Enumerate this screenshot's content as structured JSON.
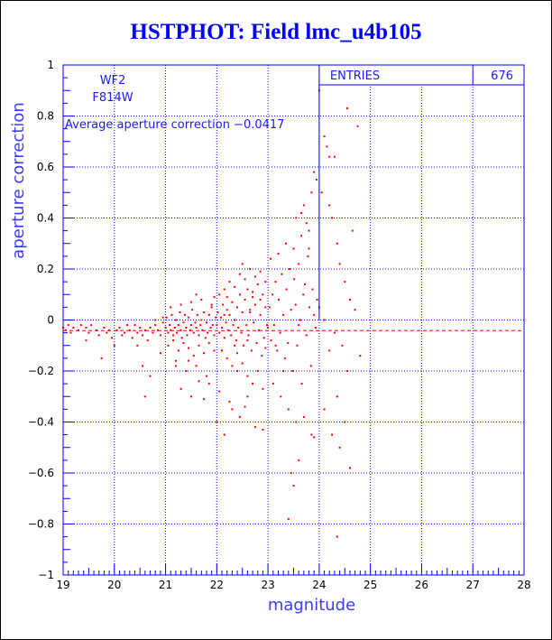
{
  "chart_data": {
    "type": "scatter",
    "title": "HSTPHOT: Field lmc_u4b105",
    "xlabel": "magnitude",
    "ylabel": "aperture correction",
    "xlim": [
      19,
      28
    ],
    "ylim": [
      -1,
      1
    ],
    "x_ticks": [
      19,
      20,
      21,
      22,
      23,
      24,
      25,
      26,
      27,
      28
    ],
    "y_ticks": [
      -1,
      -0.8,
      -0.6,
      -0.4,
      -0.2,
      0,
      0.2,
      0.4,
      0.6,
      0.8,
      1
    ],
    "y_tick_labels": [
      "−1",
      "−0.8",
      "−0.6",
      "−0.4",
      "−0.2",
      "0",
      "0.2",
      "0.4",
      "0.6",
      "0.8",
      "1"
    ],
    "grid": true,
    "colors": {
      "points": "#ff0000",
      "grid": "#0000ff",
      "frame": "#0000ff",
      "title": "#0000ff",
      "text": "#1a1aff"
    },
    "stats_box": {
      "label": "ENTRIES",
      "value": "676",
      "position": "top-right"
    },
    "annotations": {
      "camera": "WF2",
      "filter": "F814W",
      "average_text": "Average aperture correction −0.0417"
    },
    "average_line": {
      "y": -0.0417,
      "style": "dashed",
      "color": "#ff0000"
    },
    "entries": 676,
    "points": [
      [
        19.0,
        -0.03
      ],
      [
        19.05,
        -0.04
      ],
      [
        19.1,
        -0.02
      ],
      [
        19.15,
        -0.05
      ],
      [
        19.2,
        -0.03
      ],
      [
        19.3,
        -0.04
      ],
      [
        19.35,
        -0.02
      ],
      [
        19.45,
        -0.03
      ],
      [
        19.5,
        -0.05
      ],
      [
        19.55,
        -0.02
      ],
      [
        19.65,
        -0.04
      ],
      [
        19.7,
        -0.06
      ],
      [
        19.8,
        -0.03
      ],
      [
        19.85,
        -0.05
      ],
      [
        19.9,
        -0.04
      ],
      [
        19.95,
        -0.07
      ],
      [
        20.05,
        -0.04
      ],
      [
        20.1,
        -0.03
      ],
      [
        20.15,
        -0.06
      ],
      [
        20.2,
        -0.05
      ],
      [
        20.3,
        -0.04
      ],
      [
        20.35,
        -0.07
      ],
      [
        20.4,
        -0.02
      ],
      [
        20.45,
        -0.05
      ],
      [
        20.5,
        -0.03
      ],
      [
        20.55,
        -0.06
      ],
      [
        20.6,
        -0.04
      ],
      [
        20.65,
        -0.08
      ],
      [
        20.7,
        -0.03
      ],
      [
        20.75,
        -0.05
      ],
      [
        20.8,
        -0.02
      ],
      [
        20.85,
        -0.04
      ],
      [
        20.9,
        -0.06
      ],
      [
        20.95,
        -0.01
      ],
      [
        19.45,
        -0.08
      ],
      [
        19.75,
        -0.15
      ],
      [
        20.0,
        -0.1
      ],
      [
        20.55,
        -0.18
      ],
      [
        20.6,
        -0.3
      ],
      [
        20.7,
        -0.22
      ],
      [
        20.9,
        -0.13
      ],
      [
        20.45,
        -0.1
      ],
      [
        20.25,
        -0.02
      ],
      [
        20.8,
        0.0
      ],
      [
        20.95,
        0.01
      ],
      [
        21.0,
        -0.03
      ],
      [
        21.02,
        0.01
      ],
      [
        21.05,
        -0.05
      ],
      [
        21.08,
        -0.02
      ],
      [
        21.1,
        -0.04
      ],
      [
        21.12,
        0.02
      ],
      [
        21.15,
        -0.06
      ],
      [
        21.18,
        -0.03
      ],
      [
        21.2,
        0.0
      ],
      [
        21.22,
        -0.05
      ],
      [
        21.25,
        -0.02
      ],
      [
        21.28,
        0.03
      ],
      [
        21.3,
        -0.04
      ],
      [
        21.32,
        -0.07
      ],
      [
        21.35,
        -0.01
      ],
      [
        21.38,
        0.02
      ],
      [
        21.4,
        -0.03
      ],
      [
        21.42,
        -0.06
      ],
      [
        21.45,
        0.01
      ],
      [
        21.48,
        -0.04
      ],
      [
        21.5,
        -0.02
      ],
      [
        21.52,
        0.04
      ],
      [
        21.55,
        -0.05
      ],
      [
        21.58,
        -0.01
      ],
      [
        21.6,
        -0.03
      ],
      [
        21.62,
        0.02
      ],
      [
        21.65,
        -0.06
      ],
      [
        21.68,
        -0.02
      ],
      [
        21.7,
        0.0
      ],
      [
        21.72,
        -0.04
      ],
      [
        21.75,
        0.03
      ],
      [
        21.78,
        -0.07
      ],
      [
        21.8,
        -0.01
      ],
      [
        21.82,
        -0.05
      ],
      [
        21.85,
        0.02
      ],
      [
        21.88,
        -0.03
      ],
      [
        21.9,
        0.05
      ],
      [
        21.92,
        -0.02
      ],
      [
        21.95,
        -0.06
      ],
      [
        21.98,
        0.01
      ],
      [
        21.05,
        -0.1
      ],
      [
        21.15,
        -0.08
      ],
      [
        21.25,
        -0.12
      ],
      [
        21.35,
        -0.09
      ],
      [
        21.45,
        -0.11
      ],
      [
        21.55,
        -0.14
      ],
      [
        21.65,
        -0.1
      ],
      [
        21.75,
        -0.13
      ],
      [
        21.85,
        -0.09
      ],
      [
        21.95,
        -0.12
      ],
      [
        21.1,
        0.05
      ],
      [
        21.3,
        0.06
      ],
      [
        21.5,
        0.07
      ],
      [
        21.7,
        0.08
      ],
      [
        21.9,
        0.06
      ],
      [
        21.2,
        -0.16
      ],
      [
        21.4,
        -0.2
      ],
      [
        21.6,
        -0.18
      ],
      [
        21.8,
        -0.22
      ],
      [
        21.3,
        -0.27
      ],
      [
        21.5,
        -0.3
      ],
      [
        21.75,
        -0.31
      ],
      [
        21.85,
        -0.25
      ],
      [
        21.65,
        -0.24
      ],
      [
        21.2,
        -0.18
      ],
      [
        21.45,
        -0.16
      ],
      [
        21.95,
        0.09
      ],
      [
        21.6,
        0.1
      ],
      [
        22.0,
        -0.02
      ],
      [
        22.02,
        0.03
      ],
      [
        22.05,
        -0.05
      ],
      [
        22.08,
        0.01
      ],
      [
        22.1,
        -0.03
      ],
      [
        22.12,
        0.06
      ],
      [
        22.15,
        -0.07
      ],
      [
        22.18,
        -0.01
      ],
      [
        22.2,
        0.04
      ],
      [
        22.22,
        -0.04
      ],
      [
        22.25,
        0.02
      ],
      [
        22.28,
        -0.06
      ],
      [
        22.3,
        0.07
      ],
      [
        22.32,
        -0.02
      ],
      [
        22.35,
        0.0
      ],
      [
        22.38,
        -0.08
      ],
      [
        22.4,
        0.05
      ],
      [
        22.42,
        -0.03
      ],
      [
        22.45,
        0.1
      ],
      [
        22.48,
        -0.05
      ],
      [
        22.5,
        0.03
      ],
      [
        22.52,
        -0.1
      ],
      [
        22.55,
        0.08
      ],
      [
        22.58,
        -0.02
      ],
      [
        22.6,
        0.12
      ],
      [
        22.62,
        -0.06
      ],
      [
        22.65,
        0.04
      ],
      [
        22.68,
        -0.12
      ],
      [
        22.7,
        0.09
      ],
      [
        22.72,
        -0.01
      ],
      [
        22.75,
        0.06
      ],
      [
        22.78,
        -0.09
      ],
      [
        22.8,
        0.14
      ],
      [
        22.82,
        -0.04
      ],
      [
        22.85,
        0.02
      ],
      [
        22.88,
        -0.14
      ],
      [
        22.9,
        0.1
      ],
      [
        22.92,
        -0.07
      ],
      [
        22.95,
        0.05
      ],
      [
        22.98,
        -0.02
      ],
      [
        22.05,
        0.1
      ],
      [
        22.15,
        0.12
      ],
      [
        22.25,
        0.15
      ],
      [
        22.35,
        0.13
      ],
      [
        22.45,
        0.18
      ],
      [
        22.55,
        0.16
      ],
      [
        22.65,
        0.2
      ],
      [
        22.75,
        0.17
      ],
      [
        22.85,
        0.19
      ],
      [
        22.95,
        0.15
      ],
      [
        22.1,
        -0.12
      ],
      [
        22.2,
        -0.15
      ],
      [
        22.3,
        -0.18
      ],
      [
        22.4,
        -0.2
      ],
      [
        22.5,
        -0.17
      ],
      [
        22.6,
        -0.22
      ],
      [
        22.7,
        -0.25
      ],
      [
        22.8,
        -0.2
      ],
      [
        22.9,
        -0.27
      ],
      [
        22.0,
        -0.4
      ],
      [
        22.15,
        -0.45
      ],
      [
        22.3,
        -0.35
      ],
      [
        22.45,
        -0.38
      ],
      [
        22.6,
        -0.3
      ],
      [
        22.75,
        -0.42
      ],
      [
        22.9,
        -0.43
      ],
      [
        22.4,
        -0.13
      ],
      [
        22.6,
        -0.08
      ],
      [
        22.2,
        0.09
      ],
      [
        22.35,
        -0.1
      ],
      [
        22.5,
        0.22
      ],
      [
        22.7,
        0.11
      ],
      [
        22.85,
        0.08
      ],
      [
        22.05,
        -0.28
      ],
      [
        22.25,
        -0.32
      ],
      [
        22.55,
        -0.34
      ],
      [
        22.65,
        0.03
      ],
      [
        22.95,
        -0.11
      ],
      [
        22.15,
        0.02
      ],
      [
        23.0,
        -0.03
      ],
      [
        23.03,
        0.05
      ],
      [
        23.06,
        -0.08
      ],
      [
        23.09,
        0.1
      ],
      [
        23.12,
        -0.02
      ],
      [
        23.15,
        0.15
      ],
      [
        23.18,
        -0.12
      ],
      [
        23.21,
        0.08
      ],
      [
        23.24,
        -0.05
      ],
      [
        23.27,
        0.18
      ],
      [
        23.3,
        0.02
      ],
      [
        23.33,
        -0.15
      ],
      [
        23.36,
        0.12
      ],
      [
        23.39,
        -0.09
      ],
      [
        23.42,
        0.2
      ],
      [
        23.45,
        0.04
      ],
      [
        23.48,
        -0.2
      ],
      [
        23.51,
        0.16
      ],
      [
        23.54,
        0.06
      ],
      [
        23.57,
        -0.1
      ],
      [
        23.6,
        0.22
      ],
      [
        23.63,
        0.0
      ],
      [
        23.66,
        -0.25
      ],
      [
        23.69,
        0.1
      ],
      [
        23.72,
        0.14
      ],
      [
        23.75,
        -0.06
      ],
      [
        23.78,
        0.25
      ],
      [
        23.81,
        0.05
      ],
      [
        23.84,
        -0.18
      ],
      [
        23.87,
        0.12
      ],
      [
        23.9,
        0.02
      ],
      [
        23.93,
        -0.03
      ],
      [
        23.96,
        0.08
      ],
      [
        23.05,
        0.24
      ],
      [
        23.2,
        0.26
      ],
      [
        23.35,
        0.3
      ],
      [
        23.5,
        0.28
      ],
      [
        23.65,
        0.33
      ],
      [
        23.8,
        0.35
      ],
      [
        23.1,
        -0.25
      ],
      [
        23.25,
        -0.3
      ],
      [
        23.4,
        -0.35
      ],
      [
        23.55,
        -0.4
      ],
      [
        23.7,
        -0.38
      ],
      [
        23.85,
        -0.45
      ],
      [
        23.45,
        -0.6
      ],
      [
        23.5,
        -0.65
      ],
      [
        23.6,
        -0.55
      ],
      [
        23.4,
        -0.78
      ],
      [
        23.9,
        -0.46
      ],
      [
        23.55,
        0.4
      ],
      [
        23.7,
        0.45
      ],
      [
        23.75,
        0.38
      ],
      [
        23.85,
        0.5
      ],
      [
        23.95,
        0.55
      ],
      [
        23.9,
        0.58
      ],
      [
        23.65,
        0.42
      ],
      [
        23.8,
        0.28
      ],
      [
        23.3,
        -0.2
      ],
      [
        23.15,
        -0.1
      ],
      [
        23.6,
        -0.02
      ],
      [
        24.0,
        0.9
      ],
      [
        24.1,
        0.72
      ],
      [
        24.15,
        0.68
      ],
      [
        24.2,
        0.64
      ],
      [
        24.3,
        0.64
      ],
      [
        24.05,
        0.5
      ],
      [
        24.2,
        0.45
      ],
      [
        24.25,
        0.4
      ],
      [
        24.35,
        0.3
      ],
      [
        24.4,
        0.22
      ],
      [
        24.5,
        0.15
      ],
      [
        24.6,
        0.08
      ],
      [
        24.7,
        0.04
      ],
      [
        24.3,
        -0.05
      ],
      [
        24.45,
        -0.1
      ],
      [
        24.55,
        -0.2
      ],
      [
        24.35,
        -0.3
      ],
      [
        24.5,
        -0.4
      ],
      [
        24.4,
        -0.5
      ],
      [
        24.6,
        -0.58
      ],
      [
        24.35,
        -0.85
      ],
      [
        24.2,
        -0.12
      ],
      [
        24.1,
        0.0
      ],
      [
        24.65,
        0.35
      ],
      [
        24.55,
        0.83
      ],
      [
        24.75,
        0.76
      ],
      [
        24.8,
        -0.14
      ],
      [
        24.1,
        -0.35
      ],
      [
        24.25,
        -0.45
      ],
      [
        24.0,
        0.05
      ]
    ]
  }
}
